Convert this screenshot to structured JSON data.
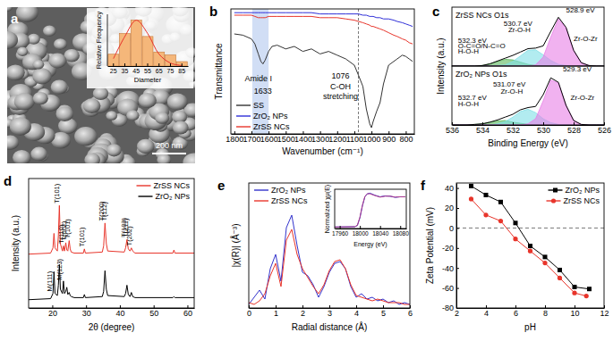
{
  "chart_data": [
    {
      "type": "bar",
      "panel": "a",
      "scale_bar": "200 nm",
      "xlabel": "Diameter",
      "ylabel": "Relative Frequency",
      "categories": [
        "25",
        "35",
        "45",
        "55",
        "65",
        "75",
        "85"
      ],
      "series": [
        {
          "type": "bar",
          "color": "#f5b77a",
          "values": [
            0.08,
            0.22,
            0.31,
            0.2,
            0.095,
            0.075,
            0.03
          ]
        },
        {
          "type": "line",
          "color": "#e8302a",
          "values": [
            0.05,
            0.2,
            0.31,
            0.22,
            0.08,
            0.02,
            0.003
          ]
        }
      ],
      "ylim": [
        0,
        0.35
      ],
      "tick_labels": "x"
    },
    {
      "type": "line",
      "panel": "b",
      "xlabel": "Wavenumber (cm⁻¹)",
      "ylabel": "Transmittance",
      "x": [
        1800,
        1750,
        1700,
        1680,
        1660,
        1645,
        1633,
        1620,
        1600,
        1580,
        1550,
        1500,
        1450,
        1400,
        1350,
        1300,
        1250,
        1200,
        1150,
        1100,
        1076,
        1050,
        1030,
        1010,
        1000,
        990,
        970,
        950,
        930,
        900,
        870,
        850,
        820,
        800,
        780,
        760
      ],
      "series": [
        {
          "name": "SS",
          "color": "#333333",
          "values": [
            0.8,
            0.79,
            0.76,
            0.72,
            0.64,
            0.58,
            0.56,
            0.59,
            0.66,
            0.7,
            0.71,
            0.68,
            0.7,
            0.66,
            0.68,
            0.64,
            0.66,
            0.63,
            0.6,
            0.55,
            0.47,
            0.38,
            0.2,
            0.08,
            0.05,
            0.1,
            0.18,
            0.25,
            0.4,
            0.55,
            0.58,
            0.6,
            0.63,
            0.62,
            0.6,
            0.58
          ]
        },
        {
          "name": "ZrO₂ NPs",
          "color": "#2f2fd8",
          "values": [
            0.97,
            0.97,
            0.97,
            0.97,
            0.97,
            0.97,
            0.97,
            0.97,
            0.97,
            0.97,
            0.97,
            0.97,
            0.97,
            0.97,
            0.97,
            0.96,
            0.96,
            0.96,
            0.96,
            0.96,
            0.96,
            0.95,
            0.95,
            0.94,
            0.94,
            0.94,
            0.93,
            0.93,
            0.92,
            0.92,
            0.91,
            0.9,
            0.89,
            0.88,
            0.87,
            0.86
          ]
        },
        {
          "name": "ZrSS NCs",
          "color": "#e8352b",
          "values": [
            0.95,
            0.95,
            0.95,
            0.94,
            0.93,
            0.93,
            0.93,
            0.93,
            0.94,
            0.94,
            0.94,
            0.94,
            0.94,
            0.94,
            0.94,
            0.93,
            0.93,
            0.93,
            0.92,
            0.91,
            0.9,
            0.89,
            0.88,
            0.87,
            0.86,
            0.86,
            0.85,
            0.84,
            0.83,
            0.81,
            0.79,
            0.78,
            0.76,
            0.75,
            0.73,
            0.72
          ]
        }
      ],
      "xlim": [
        1820,
        750
      ],
      "xticks": [
        1800,
        1700,
        1600,
        1500,
        1400,
        1300,
        1200,
        1100,
        1000,
        900,
        800
      ],
      "ylim": [
        0,
        1
      ],
      "tick_labels": "x",
      "legend": "lower left",
      "highlight": [
        1695,
        1600
      ],
      "vline": 1076,
      "annotations": [
        {
          "text": "Amide I",
          "x": 1660,
          "y": 0.42
        },
        {
          "text": "1633",
          "x": 1633,
          "y": 0.32
        },
        {
          "text": "1076",
          "x": 1180,
          "y": 0.44
        },
        {
          "text": "C-OH",
          "x": 1180,
          "y": 0.36
        },
        {
          "text": "stretching",
          "x": 1180,
          "y": 0.28
        }
      ]
    },
    {
      "type": "area",
      "panel": "c",
      "title": "ZrSS NCs O1s",
      "ylabel": "Intensity (a.u.)",
      "x": [
        536,
        535.5,
        535,
        534.5,
        534,
        533.5,
        533,
        532.5,
        532,
        531.5,
        531,
        530.5,
        530,
        529.5,
        529,
        528.5,
        528,
        527.5,
        527,
        526.5,
        526
      ],
      "series": [
        {
          "type": "area",
          "color": "#5cb85c",
          "values": [
            0,
            0,
            0,
            0,
            0.01,
            0.04,
            0.08,
            0.12,
            0.11,
            0.07,
            0.03,
            0.01,
            0,
            0,
            0,
            0,
            0,
            0,
            0,
            0,
            0
          ]
        },
        {
          "type": "area",
          "color": "#7fdfe6",
          "values": [
            0,
            0,
            0,
            0,
            0,
            0,
            0.01,
            0.02,
            0.08,
            0.18,
            0.28,
            0.29,
            0.2,
            0.1,
            0.03,
            0.01,
            0,
            0,
            0,
            0,
            0
          ]
        },
        {
          "type": "area",
          "color": "#e77fe6",
          "values": [
            0,
            0,
            0,
            0,
            0,
            0,
            0,
            0,
            0,
            0,
            0,
            0.02,
            0.16,
            0.52,
            0.84,
            0.68,
            0.28,
            0.06,
            0.01,
            0,
            0
          ]
        },
        {
          "type": "line",
          "color": "#000000",
          "values": [
            0,
            0,
            0,
            0,
            0.01,
            0.04,
            0.09,
            0.14,
            0.19,
            0.25,
            0.31,
            0.32,
            0.36,
            0.62,
            0.87,
            0.69,
            0.28,
            0.06,
            0.01,
            0,
            0
          ]
        }
      ],
      "xlim": [
        536,
        526
      ],
      "ylim": [
        0,
        1.05
      ],
      "tick_labels": false,
      "annotations": [
        {
          "text": "532.3 eV",
          "x": 535.6,
          "y": 0.42
        },
        {
          "text": "O-C=O/N-C=O",
          "x": 535.6,
          "y": 0.32
        },
        {
          "text": "H-O-H",
          "x": 535.6,
          "y": 0.22
        },
        {
          "text": "530.7 eV",
          "x": 532.6,
          "y": 0.72
        },
        {
          "text": "Zr-O-H",
          "x": 532.3,
          "y": 0.6
        },
        {
          "text": "528.9 eV",
          "x": 528.5,
          "y": 0.95
        },
        {
          "text": "Zr-O-Zr",
          "x": 528.0,
          "y": 0.45
        }
      ]
    },
    {
      "type": "area",
      "title": "ZrO₂ NPs O1s",
      "xlabel": "Binding Energy (eV)",
      "x": [
        536,
        535.5,
        535,
        534.5,
        534,
        533.5,
        533,
        532.5,
        532,
        531.5,
        531,
        530.5,
        530,
        529.5,
        529,
        528.5,
        528,
        527.5,
        527,
        526.5,
        526
      ],
      "series": [
        {
          "type": "area",
          "color": "#5cb85c",
          "values": [
            0,
            0,
            0,
            0.01,
            0.02,
            0.05,
            0.07,
            0.08,
            0.05,
            0.03,
            0.01,
            0,
            0,
            0,
            0,
            0,
            0,
            0,
            0,
            0,
            0
          ]
        },
        {
          "type": "area",
          "color": "#7fdfe6",
          "values": [
            0,
            0,
            0,
            0,
            0,
            0,
            0.02,
            0.06,
            0.14,
            0.24,
            0.28,
            0.22,
            0.11,
            0.04,
            0.01,
            0,
            0,
            0,
            0,
            0,
            0
          ]
        },
        {
          "type": "area",
          "color": "#e77fe6",
          "values": [
            0,
            0,
            0,
            0,
            0,
            0,
            0,
            0,
            0,
            0,
            0.02,
            0.11,
            0.43,
            0.8,
            0.75,
            0.35,
            0.08,
            0.01,
            0,
            0,
            0
          ]
        },
        {
          "type": "line",
          "color": "#000000",
          "values": [
            0,
            0,
            0,
            0.01,
            0.02,
            0.05,
            0.09,
            0.14,
            0.19,
            0.27,
            0.31,
            0.33,
            0.54,
            0.84,
            0.76,
            0.35,
            0.08,
            0.01,
            0,
            0,
            0
          ]
        }
      ],
      "xlim": [
        536,
        526
      ],
      "xticks": [
        536,
        534,
        532,
        530,
        528,
        526
      ],
      "ylim": [
        0,
        1.05
      ],
      "tick_labels": "x",
      "annotations": [
        {
          "text": "532.7 eV",
          "x": 535.6,
          "y": 0.45
        },
        {
          "text": "H-O-H",
          "x": 535.6,
          "y": 0.33
        },
        {
          "text": "531.07 eV",
          "x": 533.3,
          "y": 0.68
        },
        {
          "text": "Zr-O-H",
          "x": 532.8,
          "y": 0.56
        },
        {
          "text": "529.3 eV",
          "x": 528.7,
          "y": 0.95
        },
        {
          "text": "Zr-O-Zr",
          "x": 528.2,
          "y": 0.45
        }
      ]
    },
    {
      "type": "line",
      "panel": "d",
      "xlabel": "2θ (degree)",
      "ylabel": "Intensity (a.u.)",
      "x": [
        13,
        19.5,
        20.2,
        20.5,
        20.8,
        21.5,
        21.8,
        22.1,
        22.4,
        23,
        23.3,
        23.6,
        24,
        24.3,
        24.6,
        25,
        25.3,
        25.6,
        26.5,
        29.2,
        29.5,
        29.8,
        34.8,
        35.2,
        35.6,
        36,
        36.4,
        41.3,
        41.7,
        42.1,
        42.5,
        43,
        43.4,
        43.8,
        44.5,
        55.7,
        56,
        56.3,
        62
      ],
      "series": [
        {
          "name": "ZrSS NCs",
          "color": "#e8352b",
          "values": [
            0.52,
            0.53,
            0.58,
            0.72,
            0.58,
            0.55,
            0.7,
            0.99,
            0.62,
            0.55,
            0.6,
            0.55,
            0.63,
            0.56,
            0.55,
            0.65,
            0.57,
            0.54,
            0.53,
            0.53,
            0.57,
            0.53,
            0.54,
            0.6,
            0.82,
            0.62,
            0.55,
            0.54,
            0.58,
            0.66,
            0.57,
            0.55,
            0.58,
            0.55,
            0.53,
            0.53,
            0.56,
            0.53,
            0.53
          ]
        },
        {
          "name": "ZrO₂ NPs",
          "color": "#000000",
          "values": [
            0.08,
            0.09,
            0.14,
            0.35,
            0.14,
            0.12,
            0.22,
            0.42,
            0.18,
            0.14,
            0.26,
            0.14,
            0.16,
            0.2,
            0.13,
            0.15,
            0.12,
            0.11,
            0.1,
            0.1,
            0.13,
            0.1,
            0.11,
            0.16,
            0.36,
            0.18,
            0.12,
            0.11,
            0.14,
            0.22,
            0.13,
            0.11,
            0.15,
            0.11,
            0.1,
            0.1,
            0.11,
            0.1,
            0.1
          ]
        }
      ],
      "xlim": [
        13,
        62
      ],
      "xticks": [
        20,
        30,
        40,
        50,
        60
      ],
      "ylim": [
        0,
        1.25
      ],
      "tick_labels": "x",
      "legend": "upper right",
      "annotations": [
        {
          "text": "T(101)",
          "x": 22.1,
          "y": 1.01
        },
        {
          "text": "T(110)",
          "x": 23.4,
          "y": 0.62
        },
        {
          "text": "T(002)",
          "x": 24.1,
          "y": 0.65
        },
        {
          "text": "T(101)",
          "x": 25.1,
          "y": 0.67
        },
        {
          "text": "T(101)",
          "x": 29.5,
          "y": 0.59
        },
        {
          "text": "T(200)",
          "x": 35.3,
          "y": 0.84
        },
        {
          "text": "T(112)",
          "x": 36.1,
          "y": 0.84
        },
        {
          "text": "T(103)",
          "x": 41.8,
          "y": 0.68
        },
        {
          "text": "T(211)",
          "x": 42.4,
          "y": 0.68
        },
        {
          "text": "T(202)",
          "x": 43.5,
          "y": 0.6
        },
        {
          "text": "M(111)",
          "x": 19.9,
          "y": 0.16
        },
        {
          "text": "M(123)",
          "x": 22.9,
          "y": 0.27
        }
      ]
    },
    {
      "type": "line",
      "panel": "e",
      "xlabel": "Radial distance (Å)",
      "ylabel": "|χ(R)| (Å⁻³)",
      "x": [
        0,
        0.2,
        0.4,
        0.6,
        0.8,
        1.0,
        1.2,
        1.4,
        1.6,
        1.8,
        2.0,
        2.2,
        2.4,
        2.6,
        2.8,
        3.0,
        3.2,
        3.4,
        3.6,
        3.8,
        4.0,
        4.2,
        4.4,
        4.6,
        4.8,
        5.0,
        5.2,
        5.4,
        5.6,
        5.8,
        6.0
      ],
      "series": [
        {
          "name": "ZrO₂ NPs",
          "color": "#3333cc",
          "values": [
            0.02,
            0.06,
            0.1,
            0.05,
            0.22,
            0.3,
            0.15,
            0.45,
            0.52,
            0.35,
            0.2,
            0.18,
            0.13,
            0.06,
            0.12,
            0.2,
            0.25,
            0.26,
            0.22,
            0.12,
            0.06,
            0.08,
            0.05,
            0.06,
            0.04,
            0.05,
            0.03,
            0.04,
            0.02,
            0.03,
            0.02
          ]
        },
        {
          "name": "ZrSS NCs",
          "color": "#e8352b",
          "values": [
            0.03,
            0.02,
            0.04,
            0.08,
            0.18,
            0.25,
            0.12,
            0.38,
            0.44,
            0.3,
            0.22,
            0.17,
            0.12,
            0.08,
            0.13,
            0.21,
            0.26,
            0.27,
            0.22,
            0.13,
            0.07,
            0.06,
            0.05,
            0.04,
            0.05,
            0.04,
            0.03,
            0.03,
            0.03,
            0.02,
            0.02
          ]
        }
      ],
      "xlim": [
        0,
        6
      ],
      "xticks": [
        0,
        1,
        2,
        3,
        4,
        5,
        6
      ],
      "ylim": [
        0,
        0.7
      ],
      "tick_labels": "x",
      "legend": "upper left"
    },
    {
      "type": "line",
      "xlabel": "Energy (eV)",
      "ylabel": "Normalized χμ(E)",
      "x": [
        17950,
        17990,
        17995,
        18000,
        18005,
        18010,
        18015,
        18020,
        18030,
        18040,
        18050,
        18060,
        18070,
        18080,
        18090
      ],
      "series": [
        {
          "color": "#3a3acc",
          "values": [
            0,
            0.01,
            0.05,
            0.3,
            0.7,
            1.0,
            1.1,
            1.12,
            1.05,
            1.0,
            1.03,
            1.02,
            0.98,
            1.0,
            1.0
          ]
        },
        {
          "color": "#b03a8a",
          "values": [
            0,
            0.01,
            0.06,
            0.32,
            0.72,
            1.02,
            1.1,
            1.1,
            1.04,
            0.99,
            1.02,
            1.02,
            0.99,
            1.0,
            1.0
          ]
        }
      ],
      "xlim": [
        17950,
        18092
      ],
      "xticks": [
        17960,
        18000,
        18040,
        18080
      ],
      "ylim": [
        -0.05,
        1.25
      ],
      "tick_labels": "x"
    },
    {
      "type": "line",
      "panel": "f",
      "xlabel": "pH",
      "ylabel": "Zeta Potential (mV)",
      "series": [
        {
          "name": "ZrO₂ NPs",
          "color": "#000000",
          "marker": "square",
          "x": [
            3,
            4,
            5,
            6,
            7,
            8,
            9,
            10,
            11
          ],
          "values": [
            42,
            33,
            26,
            5,
            -18,
            -29,
            -42,
            -59,
            -61
          ]
        },
        {
          "name": "ZrSS NCs",
          "color": "#e8352b",
          "marker": "circle",
          "x": [
            3,
            4,
            5,
            6,
            7,
            8,
            9,
            10,
            10.8
          ],
          "values": [
            29,
            13,
            7,
            -11,
            -23,
            -35,
            -50,
            -65,
            -68
          ]
        }
      ],
      "xlim": [
        2,
        12
      ],
      "xticks": [
        2,
        4,
        6,
        8,
        10,
        12
      ],
      "ylim": [
        -80,
        45
      ],
      "yticks": [
        -80,
        -60,
        -40,
        -20,
        0,
        20,
        40
      ],
      "legend": "upper right",
      "reference_line": 0
    }
  ]
}
